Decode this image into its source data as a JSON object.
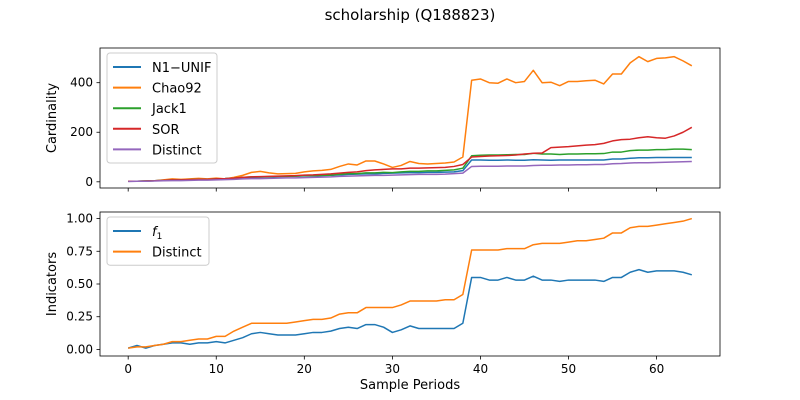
{
  "suptitle": "scholarship (Q188823)",
  "chart_data": [
    {
      "type": "line",
      "ylabel": "Cardinality",
      "xlim": [
        -3.2,
        67.2
      ],
      "ylim": [
        -25,
        540
      ],
      "yticks": [
        0,
        200,
        400
      ],
      "xticks": [
        0,
        10,
        20,
        30,
        40,
        50,
        60
      ],
      "show_xticklabels": false,
      "legend_position": "upper-left",
      "series": [
        {
          "name": "N1−UNIF",
          "color": "#1f77b4",
          "values": [
            2,
            2,
            3,
            4,
            6,
            7,
            8,
            9,
            10,
            10,
            12,
            13,
            15,
            17,
            18,
            19,
            20,
            21,
            22,
            23,
            24,
            24,
            25,
            26,
            28,
            30,
            31,
            32,
            32,
            34,
            35,
            36,
            37,
            37,
            38,
            38,
            39,
            40,
            45,
            88,
            88,
            87,
            87,
            88,
            87,
            87,
            89,
            88,
            87,
            88,
            88,
            88,
            88,
            88,
            88,
            92,
            92,
            95,
            97,
            97,
            98,
            98,
            98,
            98,
            98
          ]
        },
        {
          "name": "Chao92",
          "color": "#ff7f0e",
          "values": [
            2,
            2,
            3,
            4,
            8,
            12,
            10,
            12,
            14,
            12,
            15,
            12,
            18,
            26,
            38,
            42,
            36,
            32,
            33,
            34,
            40,
            44,
            46,
            50,
            62,
            72,
            68,
            84,
            84,
            72,
            58,
            66,
            82,
            74,
            72,
            74,
            76,
            80,
            100,
            410,
            415,
            400,
            398,
            415,
            400,
            405,
            450,
            400,
            402,
            388,
            405,
            405,
            408,
            410,
            395,
            435,
            435,
            480,
            505,
            485,
            498,
            500,
            505,
            488,
            468
          ]
        },
        {
          "name": "Jack1",
          "color": "#2ca02c",
          "values": [
            2,
            2,
            3,
            4,
            6,
            8,
            8,
            9,
            10,
            10,
            12,
            13,
            15,
            18,
            20,
            20,
            21,
            22,
            22,
            23,
            25,
            25,
            26,
            27,
            30,
            33,
            33,
            36,
            36,
            38,
            37,
            40,
            42,
            42,
            44,
            44,
            46,
            48,
            55,
            105,
            107,
            108,
            108,
            109,
            110,
            110,
            115,
            112,
            112,
            110,
            112,
            112,
            113,
            113,
            114,
            120,
            120,
            126,
            128,
            128,
            130,
            130,
            132,
            132,
            130
          ]
        },
        {
          "name": "SOR",
          "color": "#d62728",
          "values": [
            2,
            2,
            3,
            4,
            6,
            8,
            8,
            9,
            10,
            10,
            12,
            13,
            15,
            18,
            20,
            21,
            22,
            23,
            24,
            25,
            27,
            28,
            30,
            32,
            35,
            38,
            40,
            45,
            48,
            50,
            52,
            52,
            55,
            55,
            56,
            57,
            58,
            62,
            70,
            100,
            102,
            104,
            105,
            106,
            108,
            112,
            115,
            116,
            138,
            140,
            142,
            145,
            148,
            150,
            155,
            165,
            170,
            172,
            178,
            182,
            178,
            176,
            185,
            200,
            220
          ]
        },
        {
          "name": "Distinct",
          "color": "#9467bd",
          "values": [
            1,
            2,
            2,
            3,
            4,
            5,
            5,
            6,
            7,
            7,
            8,
            9,
            10,
            12,
            13,
            13,
            14,
            15,
            16,
            16,
            17,
            18,
            19,
            20,
            22,
            23,
            24,
            25,
            26,
            26,
            27,
            28,
            29,
            30,
            30,
            30,
            31,
            33,
            35,
            62,
            63,
            63,
            63,
            64,
            64,
            64,
            66,
            67,
            67,
            68,
            68,
            69,
            69,
            70,
            70,
            73,
            74,
            76,
            77,
            77,
            78,
            79,
            80,
            81,
            82
          ]
        }
      ]
    },
    {
      "type": "line",
      "ylabel": "Indicators",
      "xlabel": "Sample Periods",
      "xlim": [
        -3.2,
        67.2
      ],
      "ylim": [
        -0.05,
        1.05
      ],
      "yticks": [
        0.0,
        0.25,
        0.5,
        0.75,
        1.0
      ],
      "ytick_labels": [
        "0.00",
        "0.25",
        "0.50",
        "0.75",
        "1.00"
      ],
      "xticks": [
        0,
        10,
        20,
        30,
        40,
        50,
        60
      ],
      "legend_position": "upper-left",
      "series": [
        {
          "name": "f1",
          "name_main": "f",
          "name_sub": "1",
          "color": "#1f77b4",
          "values": [
            0.01,
            0.03,
            0.01,
            0.03,
            0.04,
            0.05,
            0.05,
            0.04,
            0.05,
            0.05,
            0.06,
            0.05,
            0.07,
            0.09,
            0.12,
            0.13,
            0.12,
            0.11,
            0.11,
            0.11,
            0.12,
            0.13,
            0.13,
            0.14,
            0.16,
            0.17,
            0.16,
            0.19,
            0.19,
            0.17,
            0.13,
            0.15,
            0.18,
            0.16,
            0.16,
            0.16,
            0.16,
            0.16,
            0.2,
            0.55,
            0.55,
            0.53,
            0.53,
            0.55,
            0.53,
            0.53,
            0.56,
            0.53,
            0.53,
            0.52,
            0.53,
            0.53,
            0.53,
            0.53,
            0.52,
            0.55,
            0.55,
            0.59,
            0.61,
            0.59,
            0.6,
            0.6,
            0.6,
            0.59,
            0.57
          ]
        },
        {
          "name": "Distinct",
          "color": "#ff7f0e",
          "values": [
            0.01,
            0.02,
            0.02,
            0.03,
            0.04,
            0.06,
            0.06,
            0.07,
            0.08,
            0.08,
            0.1,
            0.1,
            0.14,
            0.17,
            0.2,
            0.2,
            0.2,
            0.2,
            0.2,
            0.21,
            0.22,
            0.23,
            0.23,
            0.24,
            0.27,
            0.28,
            0.28,
            0.32,
            0.32,
            0.32,
            0.32,
            0.34,
            0.37,
            0.37,
            0.37,
            0.37,
            0.38,
            0.38,
            0.42,
            0.76,
            0.76,
            0.76,
            0.76,
            0.77,
            0.77,
            0.77,
            0.8,
            0.81,
            0.81,
            0.81,
            0.82,
            0.83,
            0.83,
            0.84,
            0.85,
            0.89,
            0.89,
            0.93,
            0.94,
            0.94,
            0.95,
            0.96,
            0.97,
            0.98,
            1.0
          ]
        }
      ]
    }
  ]
}
